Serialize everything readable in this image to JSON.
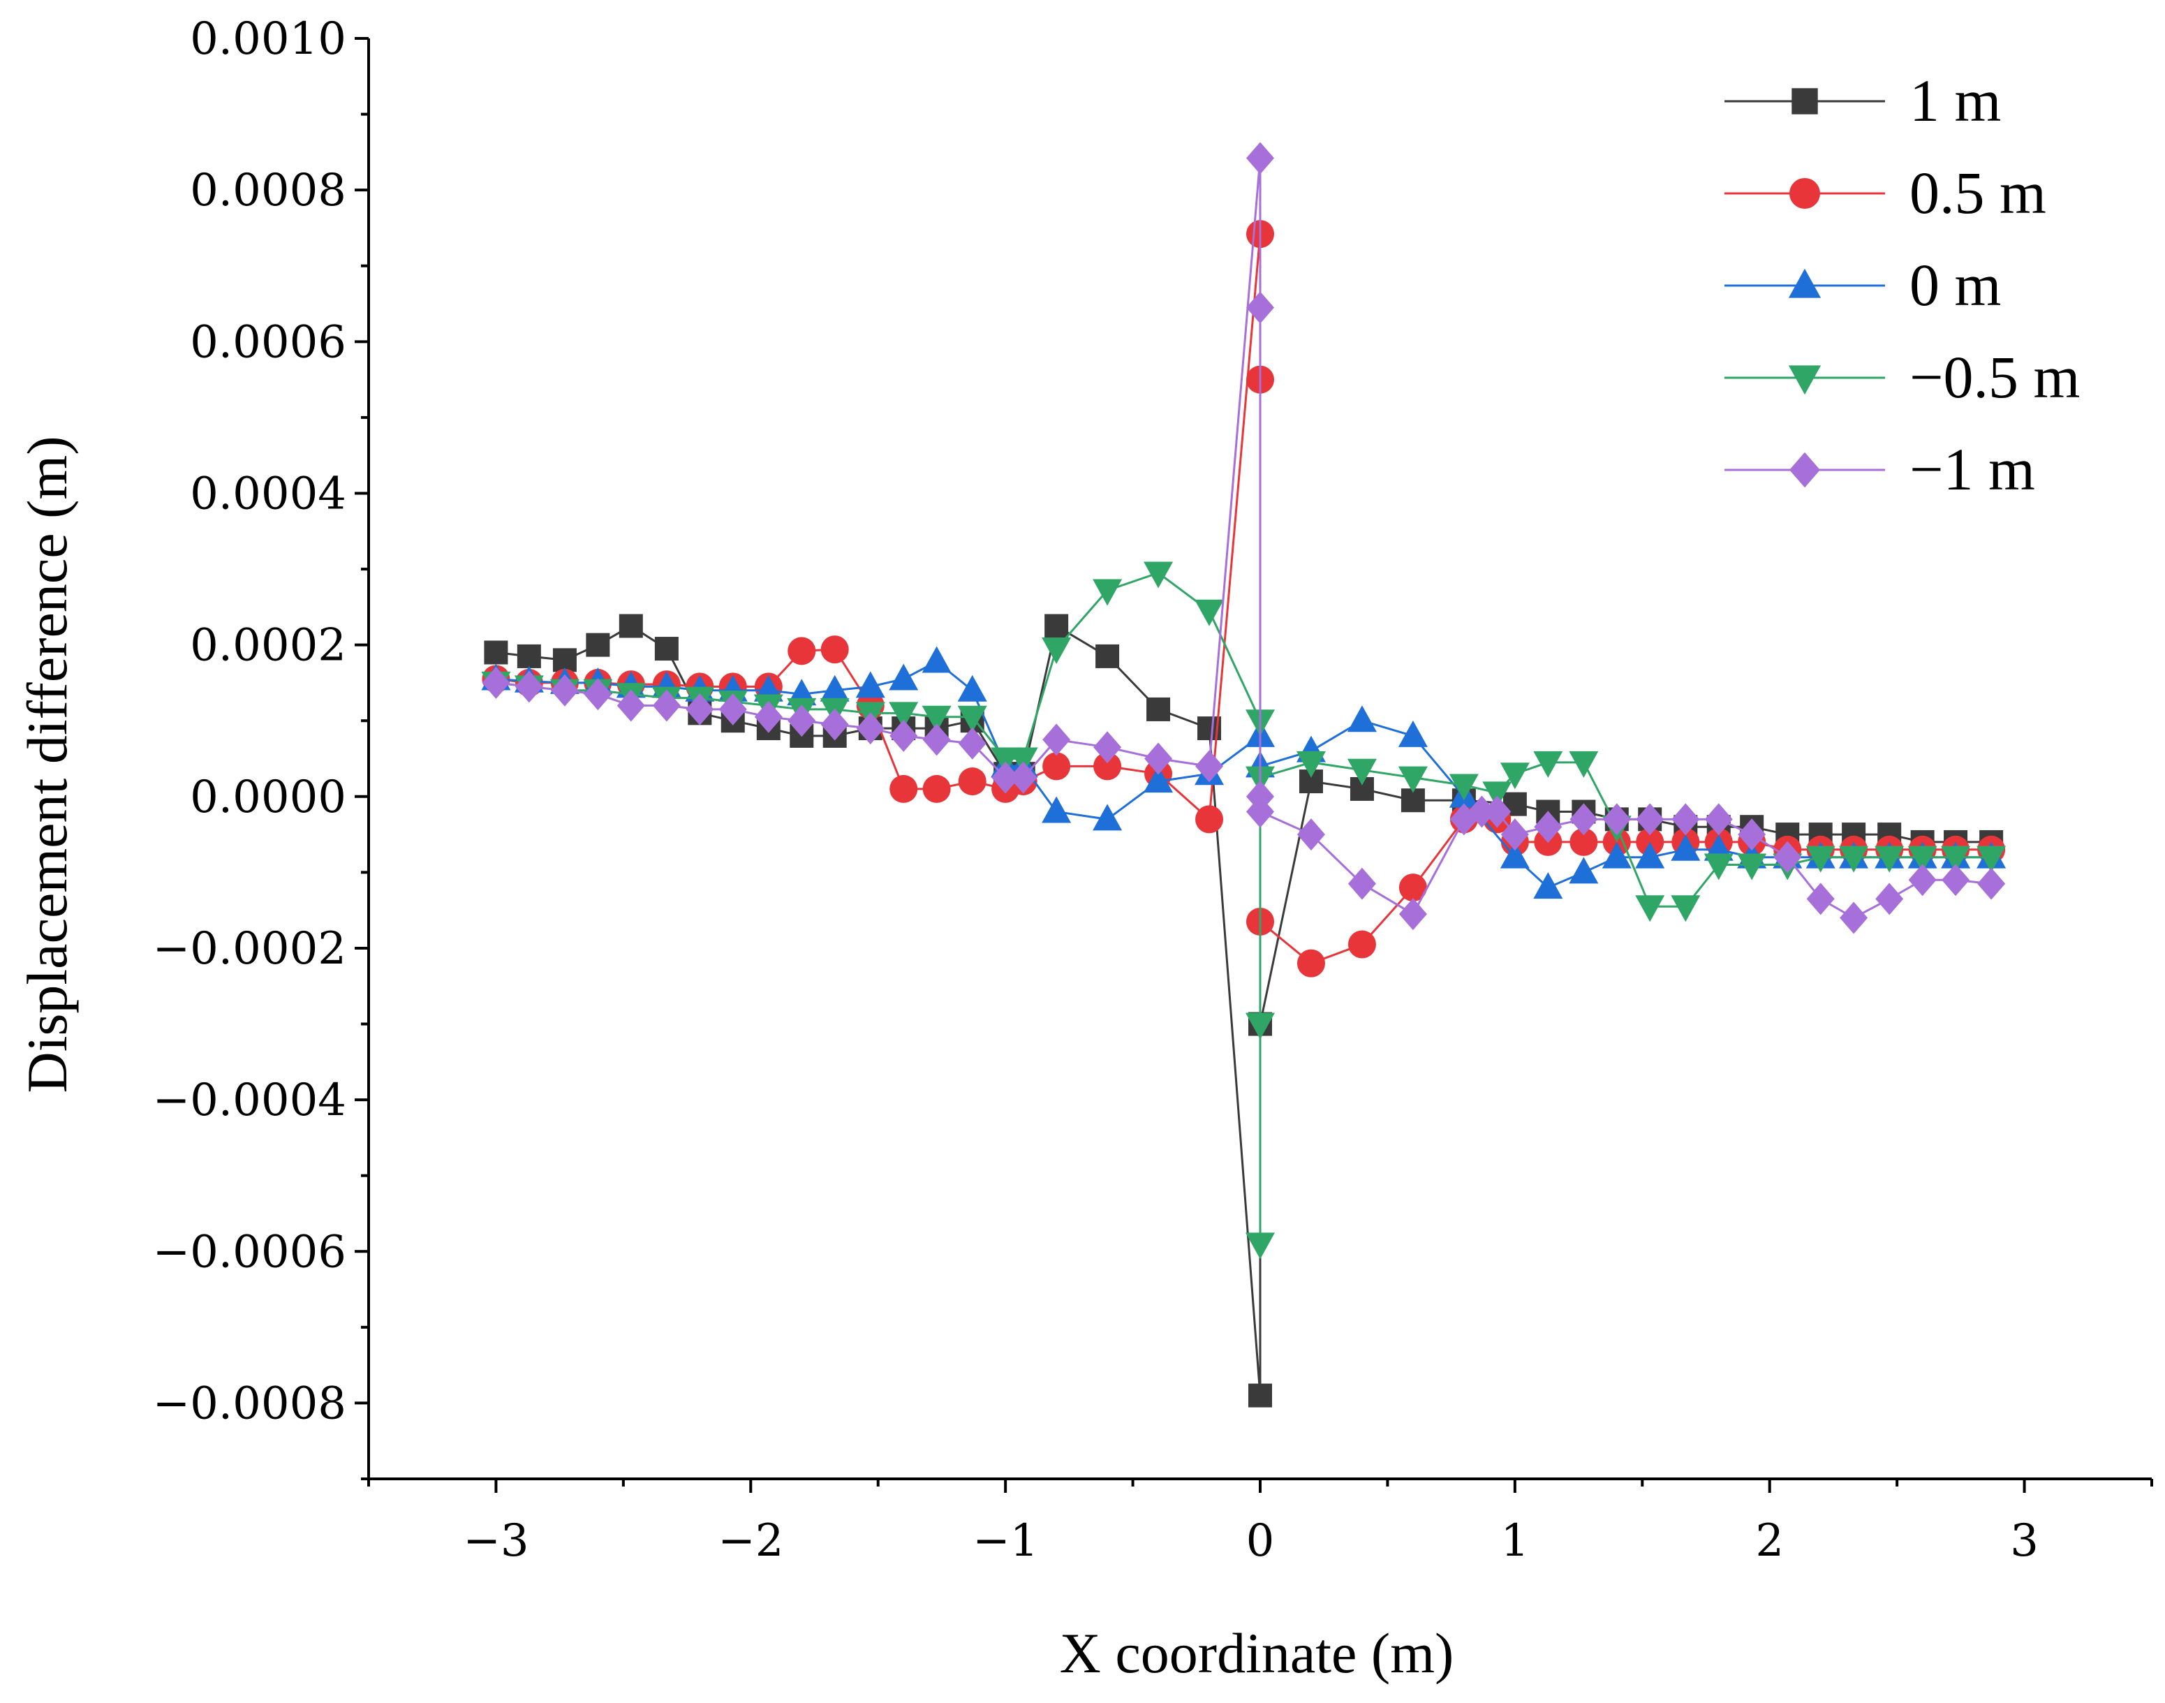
{
  "chart_data": {
    "type": "line",
    "title": "",
    "xlabel": "X coordinate (m)",
    "ylabel": "Displacement difference (m)",
    "xlim": [
      -3.5,
      3.5
    ],
    "ylim": [
      -0.0009,
      0.001
    ],
    "xticks": [
      -3,
      -2,
      -1,
      0,
      1,
      2,
      3
    ],
    "xtick_labels": [
      "−3",
      "−2",
      "−1",
      "0",
      "1",
      "2",
      "3"
    ],
    "yticks": [
      -0.0008,
      -0.0006,
      -0.0004,
      -0.0002,
      0,
      0.0002,
      0.0004,
      0.0006,
      0.0008,
      0.001
    ],
    "ytick_labels": [
      "−0.0008",
      "−0.0006",
      "−0.0004",
      "−0.0002",
      "0.0000",
      "0.0002",
      "0.0004",
      "0.0006",
      "0.0008",
      "0.0010"
    ],
    "grid": false,
    "legend_position": "top-right",
    "series": [
      {
        "name": "1 m",
        "color": "#3a3a3a",
        "marker": "square",
        "x": [
          -3.0,
          -2.87,
          -2.73,
          -2.6,
          -2.47,
          -2.33,
          -2.2,
          -2.07,
          -1.93,
          -1.8,
          -1.67,
          -1.53,
          -1.4,
          -1.27,
          -1.13,
          -1.0,
          -0.93,
          -0.8,
          -0.6,
          -0.4,
          -0.2,
          0.0,
          0.0,
          0.2,
          0.4,
          0.6,
          0.8,
          1.0,
          1.13,
          1.27,
          1.4,
          1.53,
          1.67,
          1.8,
          1.93,
          2.07,
          2.2,
          2.33,
          2.47,
          2.6,
          2.73,
          2.87
        ],
        "y": [
          0.00019,
          0.000185,
          0.00018,
          0.0002,
          0.000225,
          0.000195,
          0.00011,
          0.0001,
          9e-05,
          8e-05,
          8e-05,
          9e-05,
          9e-05,
          9e-05,
          0.0001,
          3e-05,
          3e-05,
          0.000225,
          0.000185,
          0.000115,
          9e-05,
          -0.00079,
          -0.0003,
          2e-05,
          1e-05,
          -5e-06,
          -5e-06,
          -1e-05,
          -2e-05,
          -2e-05,
          -3e-05,
          -3e-05,
          -4e-05,
          -4e-05,
          -4e-05,
          -5e-05,
          -5e-05,
          -5e-05,
          -5e-05,
          -6e-05,
          -6e-05,
          -6e-05
        ]
      },
      {
        "name": "0.5 m",
        "color": "#e8353a",
        "marker": "circle",
        "x": [
          -3.0,
          -2.87,
          -2.73,
          -2.6,
          -2.47,
          -2.33,
          -2.2,
          -2.07,
          -1.93,
          -1.8,
          -1.67,
          -1.53,
          -1.4,
          -1.27,
          -1.13,
          -1.0,
          -0.93,
          -0.8,
          -0.6,
          -0.4,
          -0.2,
          0.0,
          0.0,
          0.0,
          0.2,
          0.4,
          0.6,
          0.8,
          0.93,
          1.0,
          1.13,
          1.27,
          1.4,
          1.53,
          1.67,
          1.8,
          1.93,
          2.07,
          2.2,
          2.33,
          2.47,
          2.6,
          2.73,
          2.87
        ],
        "y": [
          0.000155,
          0.00015,
          0.00015,
          0.00015,
          0.000148,
          0.000148,
          0.000145,
          0.000145,
          0.000145,
          0.000192,
          0.000194,
          0.00012,
          1e-05,
          1e-05,
          2e-05,
          1e-05,
          2e-05,
          4e-05,
          4e-05,
          3e-05,
          -3e-05,
          0.000742,
          0.00055,
          -0.000165,
          -0.00022,
          -0.000195,
          -0.00012,
          -3e-05,
          -3e-05,
          -6e-05,
          -6e-05,
          -6e-05,
          -6e-05,
          -6e-05,
          -6e-05,
          -6e-05,
          -6e-05,
          -7e-05,
          -7e-05,
          -7e-05,
          -7e-05,
          -7e-05,
          -7e-05,
          -7e-05
        ]
      },
      {
        "name": "0 m",
        "color": "#1f6fd9",
        "marker": "triangle-up",
        "x": [
          -3.0,
          -2.87,
          -2.73,
          -2.6,
          -2.47,
          -2.33,
          -2.2,
          -2.07,
          -1.93,
          -1.8,
          -1.67,
          -1.53,
          -1.4,
          -1.27,
          -1.13,
          -1.0,
          -0.93,
          -0.8,
          -0.6,
          -0.4,
          -0.2,
          0.0,
          0.0,
          0.2,
          0.4,
          0.6,
          0.8,
          1.0,
          1.13,
          1.27,
          1.4,
          1.53,
          1.67,
          1.8,
          1.93,
          2.07,
          2.2,
          2.33,
          2.47,
          2.6,
          2.73,
          2.87
        ],
        "y": [
          0.000155,
          0.000152,
          0.00015,
          0.00015,
          0.000145,
          0.000145,
          0.00014,
          0.00014,
          0.00014,
          0.000135,
          0.00014,
          0.000145,
          0.000155,
          0.000178,
          0.00014,
          4e-05,
          4e-05,
          -2e-05,
          -3e-05,
          2e-05,
          3e-05,
          8e-05,
          4e-05,
          6e-05,
          0.0001,
          8e-05,
          0.0,
          -8e-05,
          -0.00012,
          -0.0001,
          -8e-05,
          -8e-05,
          -7e-05,
          -7e-05,
          -8e-05,
          -8e-05,
          -8e-05,
          -8e-05,
          -8e-05,
          -8e-05,
          -8e-05,
          -8e-05
        ]
      },
      {
        "name": "−0.5 m",
        "color": "#2fa665",
        "marker": "triangle-down",
        "x": [
          -3.0,
          -2.87,
          -2.73,
          -2.6,
          -2.47,
          -2.33,
          -2.2,
          -2.07,
          -1.93,
          -1.8,
          -1.67,
          -1.53,
          -1.4,
          -1.27,
          -1.13,
          -1.0,
          -0.93,
          -0.8,
          -0.6,
          -0.4,
          -0.2,
          0.0,
          0.0,
          0.0,
          0.0,
          0.2,
          0.4,
          0.6,
          0.8,
          0.93,
          1.0,
          1.13,
          1.27,
          1.4,
          1.53,
          1.67,
          1.8,
          1.93,
          2.07,
          2.2,
          2.33,
          2.47,
          2.6,
          2.73,
          2.87
        ],
        "y": [
          0.00015,
          0.000145,
          0.00014,
          0.00014,
          0.000135,
          0.00013,
          0.00013,
          0.000125,
          0.00012,
          0.000115,
          0.000115,
          0.00011,
          0.00011,
          0.000105,
          0.000105,
          5e-05,
          5e-05,
          0.000195,
          0.000272,
          0.000295,
          0.000245,
          0.0001,
          -0.0003,
          -0.00059,
          2.5e-05,
          4.5e-05,
          3.5e-05,
          2.5e-05,
          1.5e-05,
          5e-06,
          3e-05,
          4.5e-05,
          4.5e-05,
          -4e-05,
          -0.000145,
          -0.000145,
          -9e-05,
          -9e-05,
          -9e-05,
          -8e-05,
          -8e-05,
          -8e-05,
          -8e-05,
          -8e-05,
          -8e-05
        ]
      },
      {
        "name": "−1 m",
        "color": "#a66fd9",
        "marker": "diamond",
        "x": [
          -3.0,
          -2.87,
          -2.73,
          -2.6,
          -2.47,
          -2.33,
          -2.2,
          -2.07,
          -1.93,
          -1.8,
          -1.67,
          -1.53,
          -1.4,
          -1.27,
          -1.13,
          -1.0,
          -0.93,
          -0.8,
          -0.6,
          -0.4,
          -0.2,
          0.0,
          0.0,
          0.0,
          0.0,
          0.2,
          0.4,
          0.6,
          0.8,
          0.87,
          0.93,
          1.0,
          1.13,
          1.27,
          1.4,
          1.53,
          1.67,
          1.8,
          1.93,
          2.07,
          2.2,
          2.33,
          2.47,
          2.6,
          2.73,
          2.87
        ],
        "y": [
          0.00015,
          0.000145,
          0.00014,
          0.000135,
          0.00012,
          0.00012,
          0.000115,
          0.000115,
          0.000105,
          0.0001,
          9.5e-05,
          9e-05,
          8e-05,
          7.5e-05,
          7e-05,
          2.5e-05,
          2.5e-05,
          7.5e-05,
          6.5e-05,
          5e-05,
          4e-05,
          0.000842,
          0.000645,
          0.0,
          -2e-05,
          -5e-05,
          -0.000115,
          -0.000155,
          -3e-05,
          -2e-05,
          -2e-05,
          -5e-05,
          -4e-05,
          -3e-05,
          -3e-05,
          -3e-05,
          -3e-05,
          -3e-05,
          -5e-05,
          -8e-05,
          -0.000135,
          -0.00016,
          -0.000135,
          -0.00011,
          -0.00011,
          -0.000115
        ]
      }
    ]
  }
}
